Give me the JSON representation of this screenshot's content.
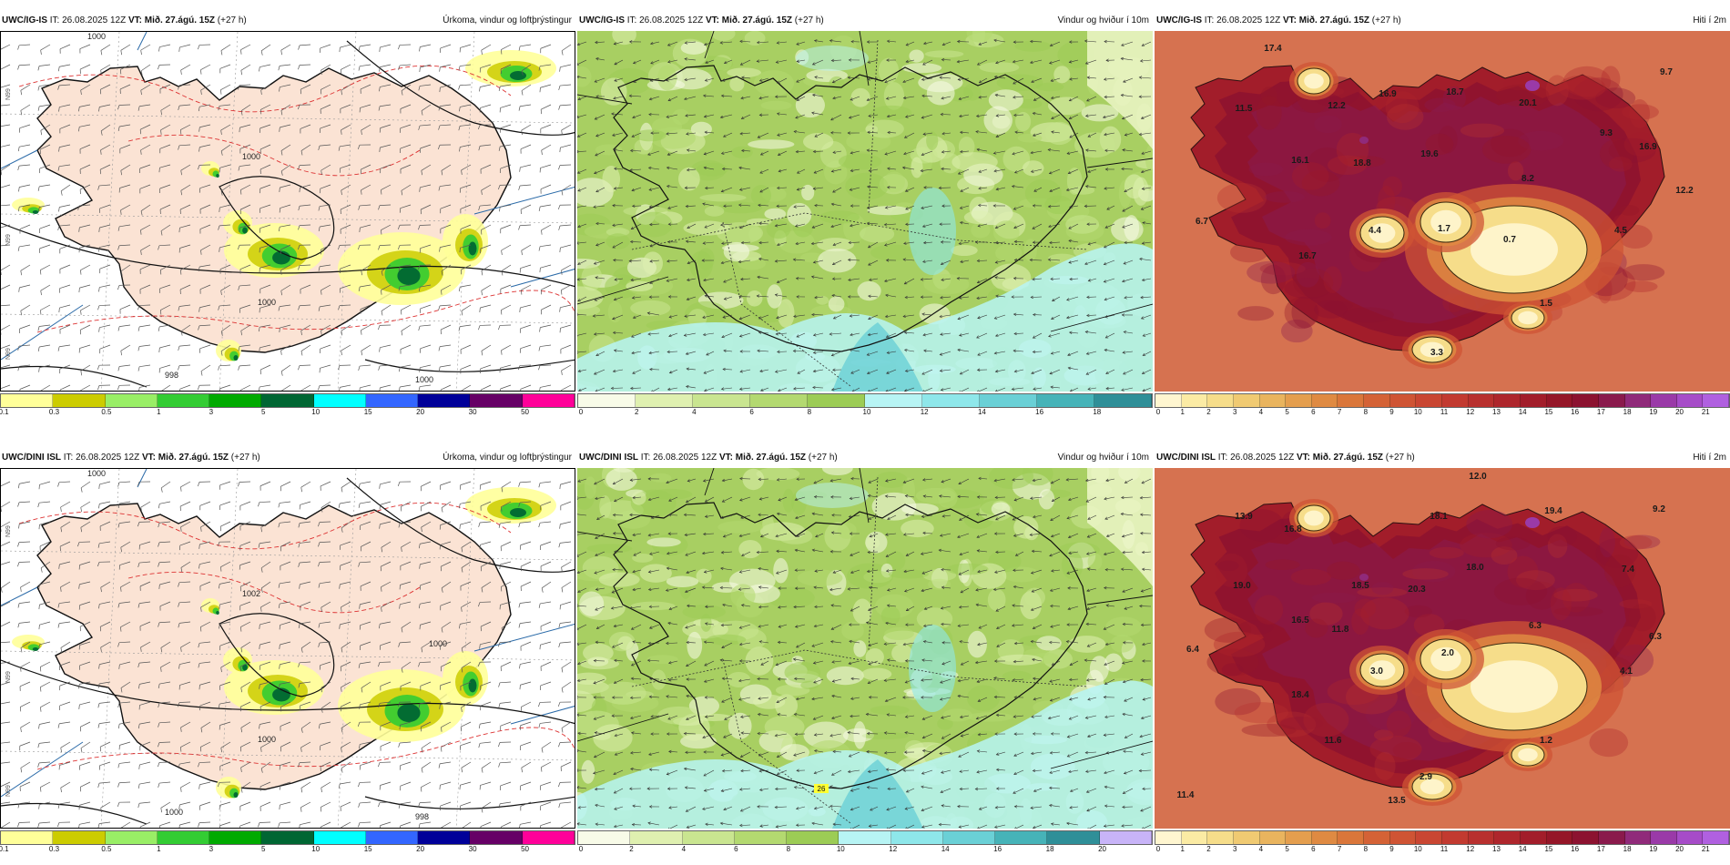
{
  "rows": [
    {
      "model": "UWC/IG-IS",
      "panels": [
        {
          "id": "precip",
          "model": "UWC/IG-IS",
          "it": "IT: 26.08.2025 12Z",
          "vt": "VT: Mið. 27.ágú. 15Z",
          "lead": "(+27 h)",
          "title": "Úrkoma, vindur og loftþrýstingur",
          "scale_labels": [
            "0.1",
            "0.3",
            "0.5",
            "1",
            "3",
            "5",
            "10",
            "15",
            "20",
            "30",
            "50"
          ],
          "isobar_labels": [
            "1000",
            "1000",
            "1000",
            "998",
            "1000"
          ],
          "coord_labels": [
            "N99",
            "N99",
            "N99"
          ]
        },
        {
          "id": "wind",
          "model": "UWC/IG-IS",
          "it": "IT: 26.08.2025 12Z",
          "vt": "VT: Mið. 27.ágú. 15Z",
          "lead": "(+27 h)",
          "title": "Vindur og hviður í 10m",
          "scale_labels": [
            "0",
            "2",
            "4",
            "6",
            "8",
            "10",
            "12",
            "14",
            "16",
            "18"
          ]
        },
        {
          "id": "temp",
          "model": "UWC/IG-IS",
          "it": "IT: 26.08.2025 12Z",
          "vt": "VT: Mið. 27.ágú. 15Z",
          "lead": "(+27 h)",
          "title": "Hiti í 2m",
          "scale_labels": [
            "0",
            "1",
            "2",
            "3",
            "4",
            "5",
            "6",
            "7",
            "8",
            "9",
            "10",
            "11",
            "12",
            "13",
            "14",
            "15",
            "16",
            "17",
            "18",
            "19",
            "20",
            "21"
          ],
          "temp_labels": [
            "17.4",
            "9.7",
            "11.5",
            "12.2",
            "16.9",
            "18.7",
            "20.1",
            "16.1",
            "18.8",
            "19.6",
            "9.3",
            "16.9",
            "8.2",
            "12.2",
            "6.7",
            "4.4",
            "1.7",
            "0.7",
            "4.5",
            "16.7",
            "1.5",
            "3.3"
          ]
        }
      ]
    },
    {
      "model": "UWC/DINI ISL",
      "panels": [
        {
          "id": "precip",
          "model": "UWC/DINI ISL",
          "it": "IT: 26.08.2025 12Z",
          "vt": "VT: Mið. 27.ágú. 15Z",
          "lead": "(+27 h)",
          "title": "Úrkoma, vindur og loftþrýstingur",
          "scale_labels": [
            "0.1",
            "0.3",
            "0.5",
            "1",
            "3",
            "5",
            "10",
            "15",
            "20",
            "30",
            "50"
          ],
          "isobar_labels": [
            "1000",
            "1002",
            "1000",
            "1000",
            "998",
            "1000"
          ],
          "coord_labels": [
            "N99",
            "N99",
            "N99"
          ]
        },
        {
          "id": "wind",
          "model": "UWC/DINI ISL",
          "it": "IT: 26.08.2025 12Z",
          "vt": "VT: Mið. 27.ágú. 15Z",
          "lead": "(+27 h)",
          "title": "Vindur og hviður í 10m",
          "scale_labels": [
            "0",
            "2",
            "4",
            "6",
            "8",
            "10",
            "12",
            "14",
            "16",
            "18",
            "20"
          ],
          "wind_labels": [
            "26"
          ]
        },
        {
          "id": "temp",
          "model": "UWC/DINI ISL",
          "it": "IT: 26.08.2025 12Z",
          "vt": "VT: Mið. 27.ágú. 15Z",
          "lead": "(+27 h)",
          "title": "Hiti í 2m",
          "scale_labels": [
            "0",
            "1",
            "2",
            "3",
            "4",
            "5",
            "6",
            "7",
            "8",
            "9",
            "10",
            "11",
            "12",
            "13",
            "14",
            "15",
            "16",
            "17",
            "18",
            "19",
            "20",
            "21"
          ],
          "temp_labels": [
            "12.0",
            "13.9",
            "16.8",
            "18.1",
            "19.4",
            "9.2",
            "19.0",
            "18.5",
            "20.3",
            "18.0",
            "7.4",
            "16.5",
            "11.8",
            "6.3",
            "6.4",
            "2.0",
            "6.3",
            "3.0",
            "4.1",
            "18.4",
            "11.6",
            "1.2",
            "2.9",
            "11.4",
            "13.5"
          ]
        }
      ]
    }
  ],
  "colors": {
    "precip_scale": [
      "#ffff99",
      "#cccc00",
      "#99ee66",
      "#33cc33",
      "#00aa00",
      "#006633",
      "#00ffff",
      "#3366ff",
      "#000099",
      "#660066",
      "#ff0099",
      "#ff0000"
    ],
    "wind_scale": [
      "#f8fbe8",
      "#dff0b0",
      "#c9e590",
      "#b3d970",
      "#9ccc55",
      "#b7f4f4",
      "#8ee7ea",
      "#6ad0d6",
      "#46b3b8",
      "#2f8f98",
      "#c8b4f8",
      "#a98ef0",
      "#8a6ae0"
    ],
    "temp_scale": [
      "#fff6d0",
      "#fbeba4",
      "#f6dd8a",
      "#f0ca72",
      "#e9b45e",
      "#e49e4e",
      "#df8a42",
      "#da763a",
      "#d46236",
      "#cf5434",
      "#c94632",
      "#c23a30",
      "#b8302e",
      "#ae262c",
      "#a21d2a",
      "#951628",
      "#8c1230",
      "#8a1a4c",
      "#902a7a",
      "#9a3aa8",
      "#a64cc8",
      "#b060e0"
    ],
    "land_precip": "#fbe3d4",
    "sea_precip": "#ffffff",
    "wind_base": "#a8cf62",
    "temp_base": "#d46a4a"
  }
}
